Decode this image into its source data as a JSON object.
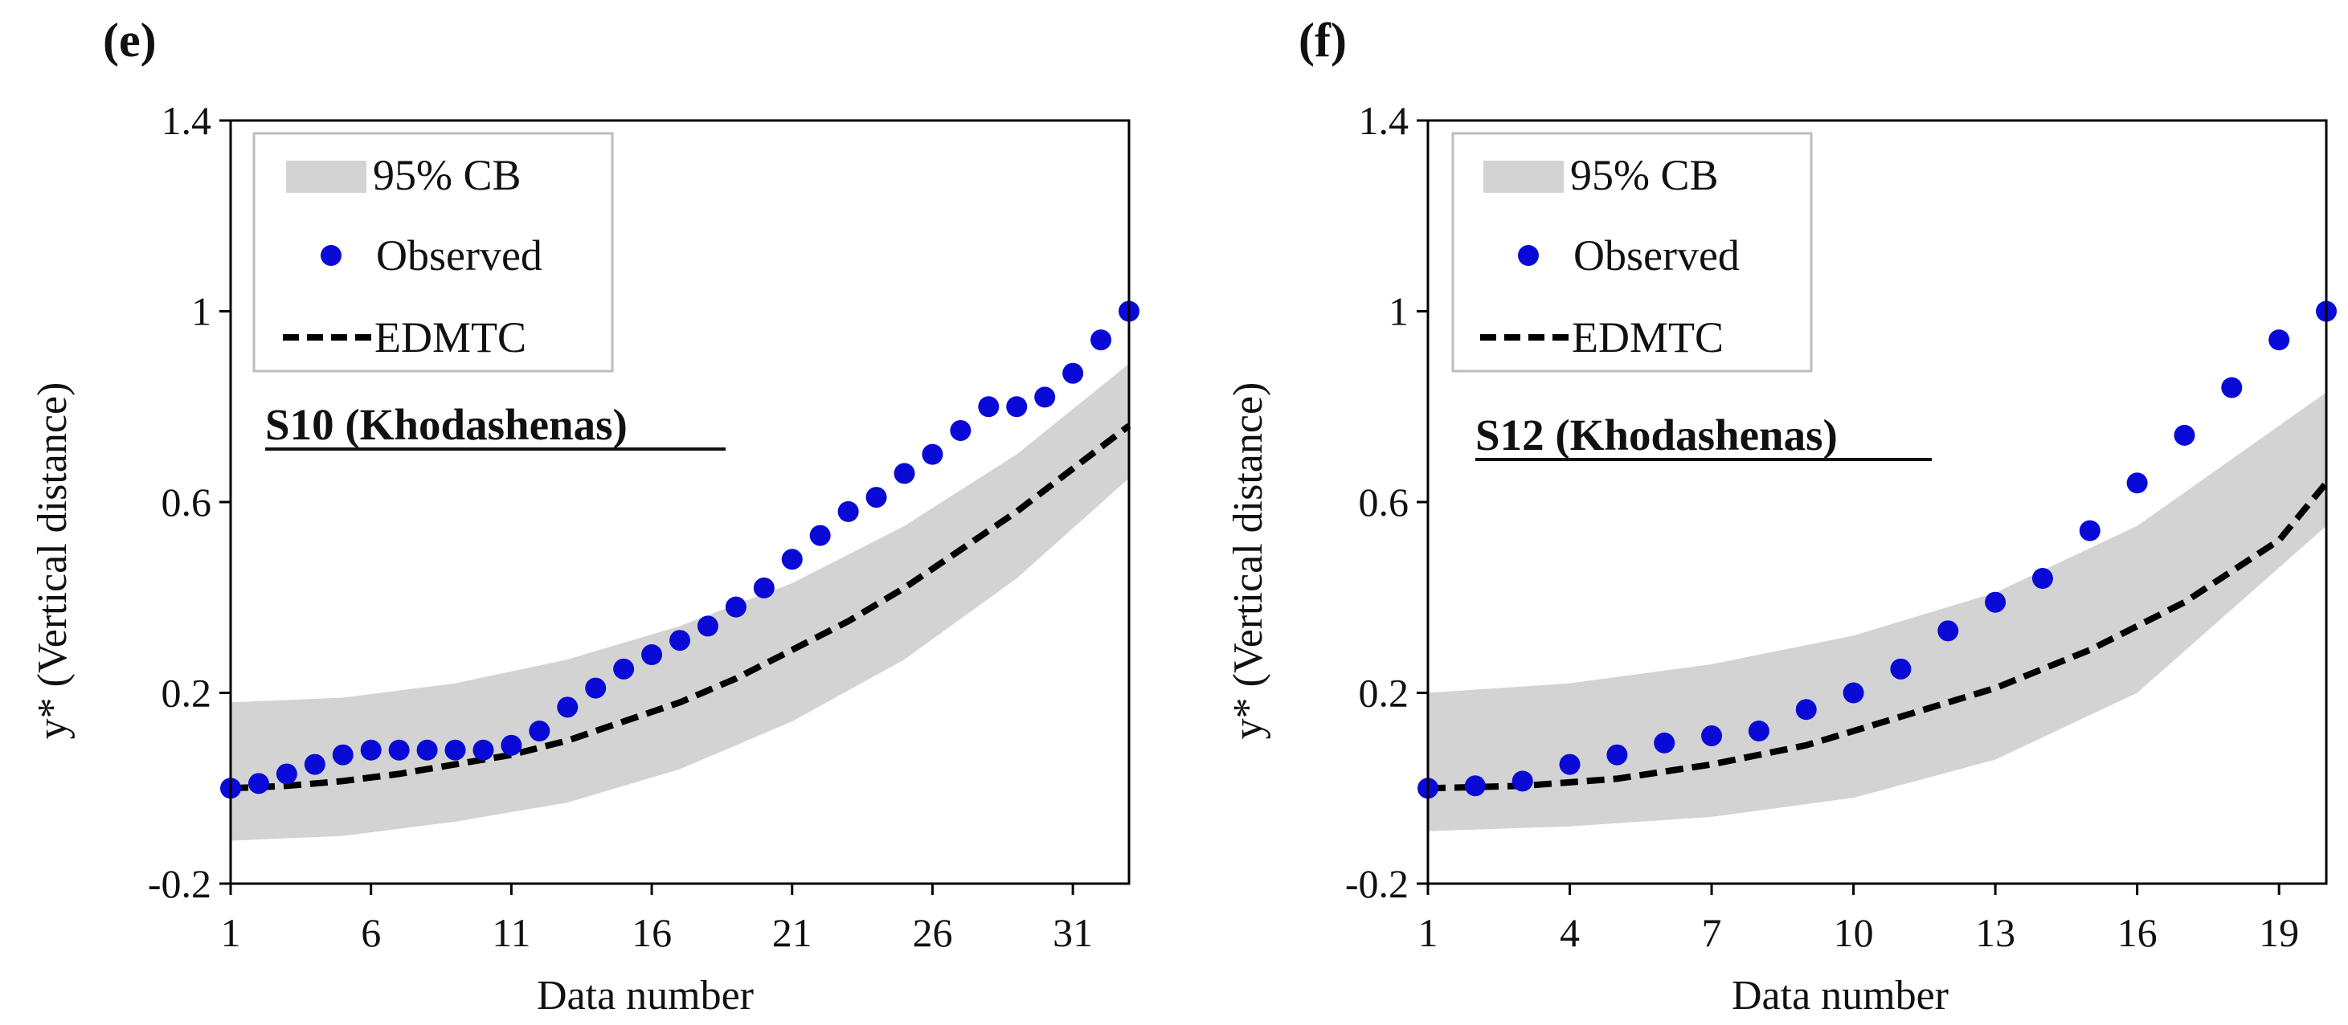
{
  "chart_data": [
    {
      "type": "scatter",
      "panel_label": "(e)",
      "station_label": "S10 (Khodashenas)",
      "xlabel": "Data number",
      "ylabel": "y* (Vertical distance)",
      "xlim": [
        1,
        33
      ],
      "ylim": [
        -0.2,
        1.4
      ],
      "xticks": [
        1,
        6,
        11,
        16,
        21,
        26,
        31
      ],
      "yticks": [
        "-0.2",
        "0.2",
        "0.6",
        "1",
        "1.4"
      ],
      "legend_position": "top-left",
      "legend": {
        "band": "95% CB",
        "observed": "Observed",
        "model": "EDMTC"
      },
      "colors": {
        "observed": "#0a0ad6",
        "band": "#d3d3d3",
        "model": "#000000"
      },
      "series": [
        {
          "name": "Observed",
          "x": [
            1,
            2,
            3,
            4,
            5,
            6,
            7,
            8,
            9,
            10,
            11,
            12,
            13,
            14,
            15,
            16,
            17,
            18,
            19,
            20,
            21,
            22,
            23,
            24,
            25,
            26,
            27,
            28,
            29,
            30,
            31,
            32,
            33
          ],
          "values": [
            0,
            0.01,
            0.03,
            0.05,
            0.07,
            0.08,
            0.08,
            0.08,
            0.08,
            0.08,
            0.09,
            0.12,
            0.17,
            0.21,
            0.25,
            0.28,
            0.31,
            0.34,
            0.38,
            0.42,
            0.48,
            0.53,
            0.58,
            0.61,
            0.66,
            0.7,
            0.75,
            0.8,
            0.8,
            0.82,
            0.87,
            0.94,
            1.0
          ]
        },
        {
          "name": "EDMTC",
          "x": [
            1,
            3,
            5,
            7,
            9,
            11,
            13,
            15,
            17,
            19,
            21,
            23,
            25,
            27,
            29,
            31,
            33
          ],
          "values": [
            0,
            0.005,
            0.015,
            0.03,
            0.05,
            0.07,
            0.1,
            0.14,
            0.18,
            0.23,
            0.29,
            0.35,
            0.42,
            0.5,
            0.58,
            0.67,
            0.76
          ]
        },
        {
          "name": "95% CB upper",
          "x": [
            1,
            5,
            9,
            13,
            17,
            21,
            25,
            29,
            33
          ],
          "values": [
            0.18,
            0.19,
            0.22,
            0.27,
            0.34,
            0.43,
            0.55,
            0.7,
            0.89
          ]
        },
        {
          "name": "95% CB lower",
          "x": [
            1,
            5,
            9,
            13,
            17,
            21,
            25,
            29,
            33
          ],
          "values": [
            -0.11,
            -0.1,
            -0.07,
            -0.03,
            0.04,
            0.14,
            0.27,
            0.44,
            0.65
          ]
        }
      ]
    },
    {
      "type": "scatter",
      "panel_label": "(f)",
      "station_label": "S12 (Khodashenas)",
      "xlabel": "Data number",
      "ylabel": "y* (Vertical distance)",
      "xlim": [
        1,
        20
      ],
      "ylim": [
        -0.2,
        1.4
      ],
      "xticks": [
        1,
        4,
        7,
        10,
        13,
        16,
        19
      ],
      "yticks": [
        "-0.2",
        "0.2",
        "0.6",
        "1",
        "1.4"
      ],
      "legend_position": "top-left",
      "legend": {
        "band": "95% CB",
        "observed": "Observed",
        "model": "EDMTC"
      },
      "colors": {
        "observed": "#0a0ad6",
        "band": "#d3d3d3",
        "model": "#000000"
      },
      "series": [
        {
          "name": "Observed",
          "x": [
            1,
            2,
            3,
            4,
            5,
            6,
            7,
            8,
            9,
            10,
            11,
            12,
            13,
            14,
            15,
            16,
            17,
            18,
            19,
            20
          ],
          "values": [
            0,
            0.005,
            0.015,
            0.05,
            0.07,
            0.095,
            0.11,
            0.12,
            0.165,
            0.2,
            0.25,
            0.33,
            0.39,
            0.44,
            0.54,
            0.64,
            0.74,
            0.84,
            0.94,
            1.0
          ]
        },
        {
          "name": "EDMTC",
          "x": [
            1,
            3,
            5,
            7,
            9,
            11,
            13,
            15,
            17,
            19,
            20
          ],
          "values": [
            0,
            0.005,
            0.02,
            0.05,
            0.09,
            0.15,
            0.21,
            0.29,
            0.39,
            0.52,
            0.64
          ]
        },
        {
          "name": "95% CB upper",
          "x": [
            1,
            4,
            7,
            10,
            13,
            16,
            20
          ],
          "values": [
            0.2,
            0.22,
            0.26,
            0.32,
            0.41,
            0.55,
            0.83
          ]
        },
        {
          "name": "95% CB lower",
          "x": [
            1,
            4,
            7,
            10,
            13,
            16,
            20
          ],
          "values": [
            -0.09,
            -0.08,
            -0.06,
            -0.02,
            0.06,
            0.2,
            0.55
          ]
        }
      ]
    }
  ]
}
